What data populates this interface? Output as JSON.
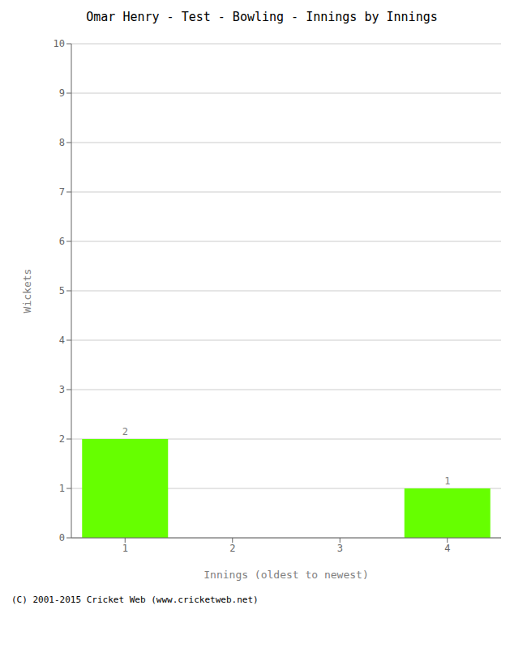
{
  "chart_data": {
    "type": "bar",
    "title": "Omar Henry - Test - Bowling - Innings by Innings",
    "xlabel": "Innings (oldest to newest)",
    "ylabel": "Wickets",
    "categories": [
      "1",
      "2",
      "3",
      "4"
    ],
    "values": [
      2,
      0,
      0,
      1
    ],
    "color": "#66ff00",
    "ylim": [
      0,
      10
    ],
    "yticks": [
      0,
      1,
      2,
      3,
      4,
      5,
      6,
      7,
      8,
      9,
      10
    ],
    "grid": true,
    "data_labels": true,
    "annotations": [
      "(C) 2001-2015 Cricket Web (www.cricketweb.net)"
    ]
  }
}
